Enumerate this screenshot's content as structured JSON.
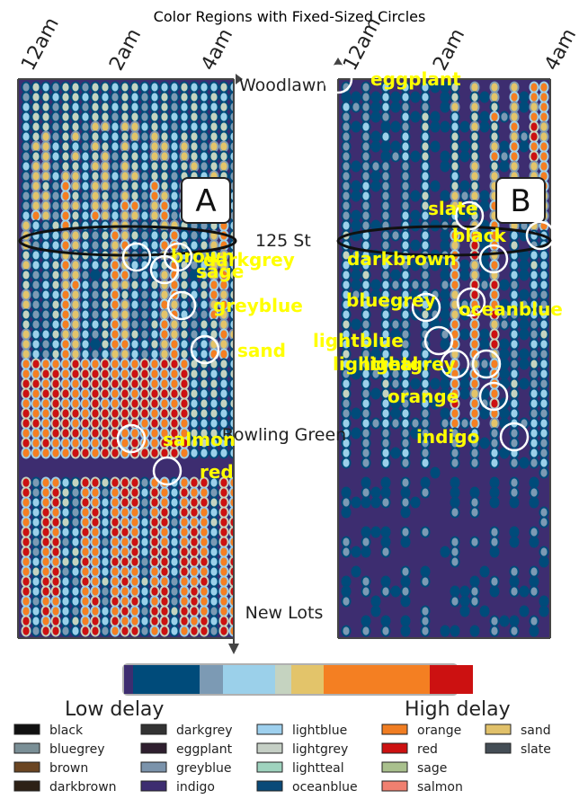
{
  "chart_data": {
    "type": "heatmap",
    "title": "Color Regions with Fixed-Sized Circles",
    "time_ticks": [
      "12am",
      "2am",
      "4am"
    ],
    "stops": [
      "Woodlawn",
      "125 St",
      "Bowling Green",
      "New Lots"
    ],
    "panels": [
      "A",
      "B"
    ],
    "colorbar": {
      "low_label": "Low delay",
      "high_label": "High delay",
      "colors": [
        "#3d2d70",
        "#004b7a",
        "#7c9ab4",
        "#9bd0ea",
        "#c5d3c0",
        "#e3c46a",
        "#f47f22",
        "#cc1111"
      ]
    },
    "circles": [
      {
        "label": "brown",
        "panel": "A"
      },
      {
        "label": "darkgrey",
        "panel": "A"
      },
      {
        "label": "sage",
        "panel": "A"
      },
      {
        "label": "greyblue",
        "panel": "A"
      },
      {
        "label": "sand",
        "panel": "A"
      },
      {
        "label": "salmon",
        "panel": "A"
      },
      {
        "label": "red",
        "panel": "A"
      },
      {
        "label": "eggplant",
        "panel": "B"
      },
      {
        "label": "slate",
        "panel": "B"
      },
      {
        "label": "black",
        "panel": "B"
      },
      {
        "label": "darkbrown",
        "panel": "B"
      },
      {
        "label": "bluegrey",
        "panel": "B"
      },
      {
        "label": "oceanblue",
        "panel": "B"
      },
      {
        "label": "lightblue",
        "panel": "B"
      },
      {
        "label": "lightgrey",
        "panel": "B"
      },
      {
        "label": "lightteal",
        "panel": "B"
      },
      {
        "label": "orange",
        "panel": "B"
      },
      {
        "label": "indigo",
        "panel": "B"
      }
    ],
    "legend": [
      {
        "name": "black",
        "color": "#111111"
      },
      {
        "name": "bluegrey",
        "color": "#7a8f96"
      },
      {
        "name": "brown",
        "color": "#6b4522"
      },
      {
        "name": "darkbrown",
        "color": "#2d2116"
      },
      {
        "name": "darkgrey",
        "color": "#333333"
      },
      {
        "name": "eggplant",
        "color": "#2f1f2f"
      },
      {
        "name": "greyblue",
        "color": "#7b93ab"
      },
      {
        "name": "indigo",
        "color": "#3d2d70"
      },
      {
        "name": "lightblue",
        "color": "#9ed0ee"
      },
      {
        "name": "lightgrey",
        "color": "#c5cfc5"
      },
      {
        "name": "lightteal",
        "color": "#9fd3be"
      },
      {
        "name": "oceanblue",
        "color": "#0a4a78"
      },
      {
        "name": "orange",
        "color": "#f07d22"
      },
      {
        "name": "red",
        "color": "#cc1111"
      },
      {
        "name": "sage",
        "color": "#a9c08d"
      },
      {
        "name": "salmon",
        "color": "#f08070"
      },
      {
        "name": "sand",
        "color": "#e1c16a"
      },
      {
        "name": "slate",
        "color": "#444d55"
      }
    ]
  }
}
